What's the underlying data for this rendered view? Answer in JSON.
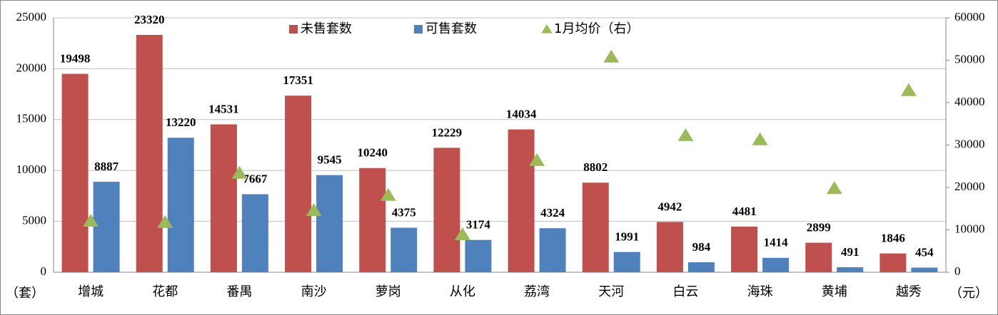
{
  "chart_data": {
    "type": "bar",
    "categories": [
      "增城",
      "花都",
      "番禺",
      "南沙",
      "萝岗",
      "从化",
      "荔湾",
      "天河",
      "白云",
      "海珠",
      "黄埔",
      "越秀"
    ],
    "series": [
      {
        "name": "未售套数",
        "color": "#c0504d",
        "values": [
          19498,
          23320,
          14531,
          17351,
          10240,
          12229,
          14034,
          8802,
          4942,
          4481,
          2899,
          1846
        ]
      },
      {
        "name": "可售套数",
        "color": "#4f81bd",
        "values": [
          8887,
          13220,
          7667,
          9545,
          4375,
          3174,
          4324,
          1991,
          984,
          1414,
          491,
          454
        ]
      },
      {
        "name": "1月均价（右）",
        "color": "#9bbb59",
        "axis": "y2",
        "marker": "triangle",
        "values": [
          12100,
          11800,
          23400,
          14600,
          18200,
          8900,
          26400,
          50800,
          32300,
          31300,
          19800,
          42900
        ]
      }
    ],
    "ylim": [
      0,
      25000
    ],
    "yticks": [
      0,
      5000,
      10000,
      15000,
      20000,
      25000
    ],
    "y2lim": [
      0,
      60000
    ],
    "y2ticks": [
      0,
      10000,
      20000,
      30000,
      40000,
      50000,
      60000
    ],
    "y_unit": "（套）",
    "y2_unit": "（元）",
    "grid": true,
    "legend": "top"
  }
}
